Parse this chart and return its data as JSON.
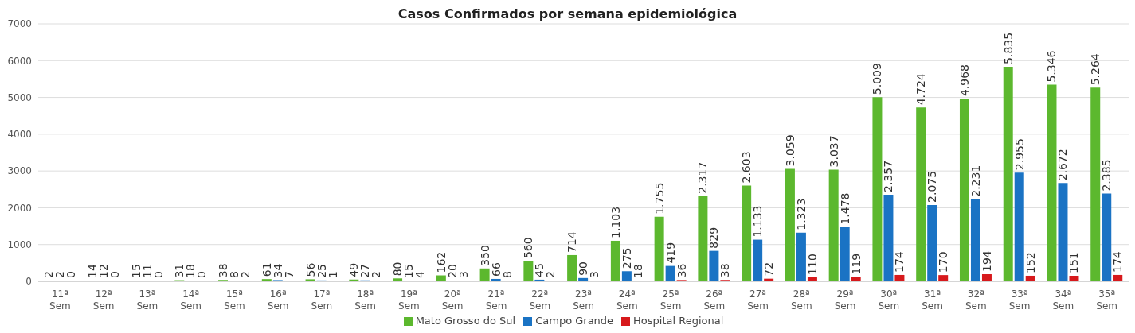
{
  "chart_data": {
    "type": "bar",
    "title": "Casos Confirmados por semana epidemiológica",
    "categories": [
      "11ª Sem",
      "12ª Sem",
      "13ª Sem",
      "14ª Sem",
      "15ª Sem",
      "16ª Sem",
      "17ª Sem",
      "18ª Sem",
      "19ª Sem",
      "20ª Sem",
      "21ª Sem",
      "22ª Sem",
      "23ª Sem",
      "24ª Sem",
      "25ª Sem",
      "26ª Sem",
      "27ª Sem",
      "28ª Sem",
      "29ª Sem",
      "30ª Sem",
      "31ª Sem",
      "32ª Sem",
      "33ª Sem",
      "34ª Sem",
      "35ª Sem"
    ],
    "series": [
      {
        "name": "Mato Grosso do Sul",
        "color": "#5cb82e",
        "values": [
          2,
          14,
          15,
          31,
          38,
          61,
          56,
          49,
          80,
          162,
          350,
          560,
          714,
          1103,
          1755,
          2317,
          2603,
          3059,
          3037,
          5009,
          4724,
          4968,
          5835,
          5346,
          5264
        ],
        "value_labels": [
          "2",
          "14",
          "15",
          "31",
          "38",
          "61",
          "56",
          "49",
          "80",
          "162",
          "350",
          "560",
          "714",
          "1.103",
          "1.755",
          "2.317",
          "2.603",
          "3.059",
          "3.037",
          "5.009",
          "4.724",
          "4.968",
          "5.835",
          "5.346",
          "5.264"
        ]
      },
      {
        "name": "Campo Grande",
        "color": "#1a73c4",
        "values": [
          2,
          12,
          11,
          18,
          8,
          34,
          25,
          27,
          15,
          20,
          66,
          45,
          90,
          275,
          419,
          829,
          1133,
          1323,
          1478,
          2357,
          2075,
          2231,
          2955,
          2672,
          2385
        ],
        "value_labels": [
          "2",
          "12",
          "11",
          "18",
          "8",
          "34",
          "25",
          "27",
          "15",
          "20",
          "66",
          "45",
          "90",
          "275",
          "419",
          "829",
          "1.133",
          "1.323",
          "1.478",
          "2.357",
          "2.075",
          "2.231",
          "2.955",
          "2.672",
          "2.385"
        ]
      },
      {
        "name": "Hospital Regional",
        "color": "#d7191c",
        "values": [
          0,
          0,
          0,
          0,
          2,
          7,
          1,
          2,
          4,
          3,
          8,
          2,
          3,
          18,
          36,
          38,
          72,
          110,
          119,
          174,
          170,
          194,
          152,
          151,
          174
        ],
        "value_labels": [
          "0",
          "0",
          "0",
          "0",
          "2",
          "7",
          "1",
          "2",
          "4",
          "3",
          "8",
          "2",
          "3",
          "18",
          "36",
          "38",
          "72",
          "110",
          "119",
          "174",
          "170",
          "194",
          "152",
          "151",
          "174"
        ]
      }
    ],
    "ylim": [
      0,
      7000
    ],
    "yticks": [
      0,
      1000,
      2000,
      3000,
      4000,
      5000,
      6000,
      7000
    ],
    "grid": "y",
    "legend": "bottom"
  }
}
